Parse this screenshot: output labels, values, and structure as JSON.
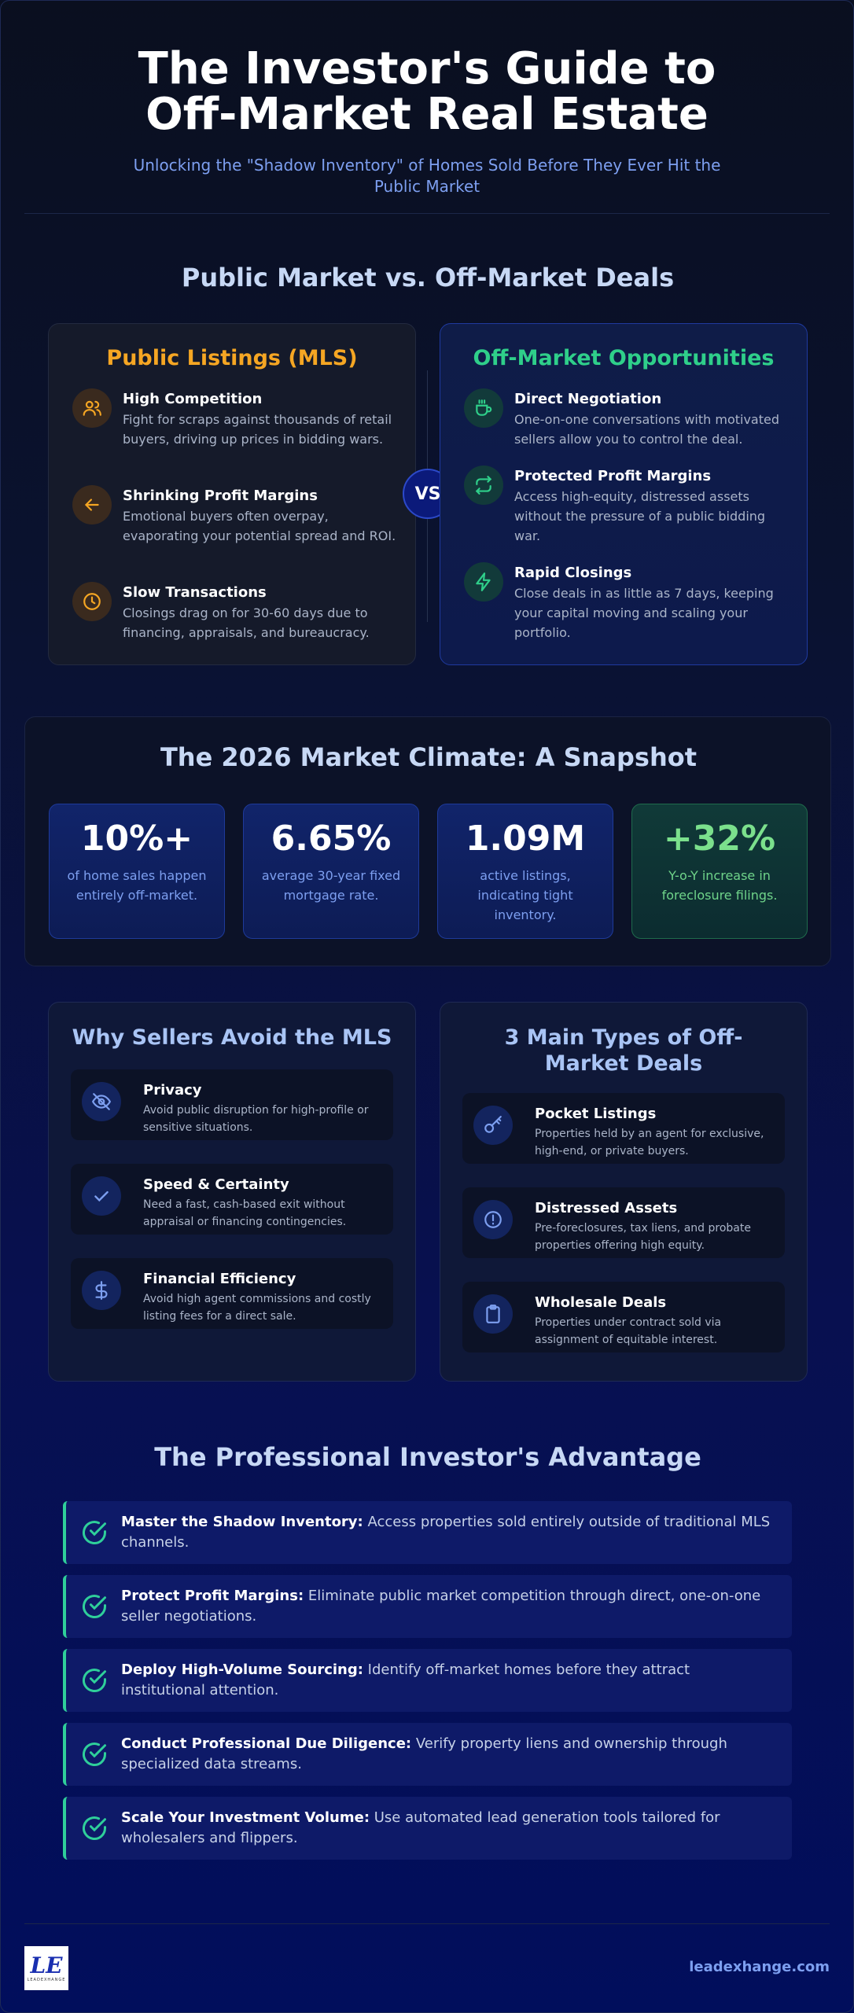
{
  "header": {
    "title": "The Investor's Guide to Off-Market Real Estate",
    "subtitle": "Unlocking the \"Shadow Inventory\" of Homes Sold Before They Ever Hit the Public Market"
  },
  "comparison": {
    "title": "Public Market vs. Off-Market Deals",
    "vs_label": "VS",
    "public": {
      "heading": "Public Listings (MLS)",
      "color": "#f5a623",
      "items": [
        {
          "icon": "users-icon",
          "title": "High Competition",
          "desc": "Fight for scraps against thousands of retail buyers, driving up prices in bidding wars."
        },
        {
          "icon": "arrow-left-icon",
          "title": "Shrinking Profit Margins",
          "desc": "Emotional buyers often overpay, evaporating your potential spread and ROI."
        },
        {
          "icon": "clock-icon",
          "title": "Slow Transactions",
          "desc": "Closings drag on for 30-60 days due to financing, appraisals, and bureaucracy."
        }
      ]
    },
    "off_market": {
      "heading": "Off-Market Opportunities",
      "color": "#2fcf8a",
      "items": [
        {
          "icon": "coffee-icon",
          "title": "Direct Negotiation",
          "desc": "One-on-one conversations with motivated sellers allow you to control the deal."
        },
        {
          "icon": "repeat-icon",
          "title": "Protected Profit Margins",
          "desc": "Access high-equity, distressed assets without the pressure of a public bidding war."
        },
        {
          "icon": "bolt-icon",
          "title": "Rapid Closings",
          "desc": "Close deals in as little as 7 days, keeping your capital moving and scaling your portfolio."
        }
      ]
    }
  },
  "climate": {
    "title": "The 2026 Market Climate: A Snapshot",
    "stats": [
      {
        "value": "10%+",
        "label": "of home sales happen entirely off-market."
      },
      {
        "value": "6.65%",
        "label": "average 30-year fixed mortgage rate."
      },
      {
        "value": "1.09M",
        "label": "active listings, indicating tight inventory."
      },
      {
        "value": "+32%",
        "label": "Y-o-Y increase in foreclosure filings."
      }
    ]
  },
  "why_sellers": {
    "heading": "Why Sellers Avoid the MLS",
    "items": [
      {
        "icon": "eye-off-icon",
        "title": "Privacy",
        "desc": "Avoid public disruption for high-profile or sensitive situations."
      },
      {
        "icon": "check-icon",
        "title": "Speed & Certainty",
        "desc": "Need a fast, cash-based exit without appraisal or financing contingencies."
      },
      {
        "icon": "dollar-icon",
        "title": "Financial Efficiency",
        "desc": "Avoid high agent commissions and costly listing fees for a direct sale."
      }
    ]
  },
  "deal_types": {
    "heading": "3 Main Types of Off-Market Deals",
    "items": [
      {
        "icon": "key-icon",
        "title": "Pocket Listings",
        "desc": "Properties held by an agent for exclusive, high-end, or private buyers."
      },
      {
        "icon": "alert-circle-icon",
        "title": "Distressed Assets",
        "desc": "Pre-foreclosures, tax liens, and probate properties offering high equity."
      },
      {
        "icon": "clipboard-icon",
        "title": "Wholesale Deals",
        "desc": "Properties under contract sold via assignment of equitable interest."
      }
    ]
  },
  "advantage": {
    "title": "The Professional Investor's Advantage",
    "items": [
      {
        "bold": "Master the Shadow Inventory:",
        "text": " Access properties sold entirely outside of traditional MLS channels."
      },
      {
        "bold": "Protect Profit Margins:",
        "text": " Eliminate public market competition through direct, one-on-one seller negotiations."
      },
      {
        "bold": "Deploy High-Volume Sourcing:",
        "text": " Identify off-market homes before they attract institutional attention."
      },
      {
        "bold": "Conduct Professional Due Diligence:",
        "text": " Verify property liens and ownership through specialized data streams."
      },
      {
        "bold": "Scale Your Investment Volume:",
        "text": " Use automated lead generation tools tailored for wholesalers and flippers."
      }
    ]
  },
  "footer": {
    "logo_mark": "LE",
    "logo_text": "LEADEXHANGE",
    "site": "leadexhange.com"
  }
}
